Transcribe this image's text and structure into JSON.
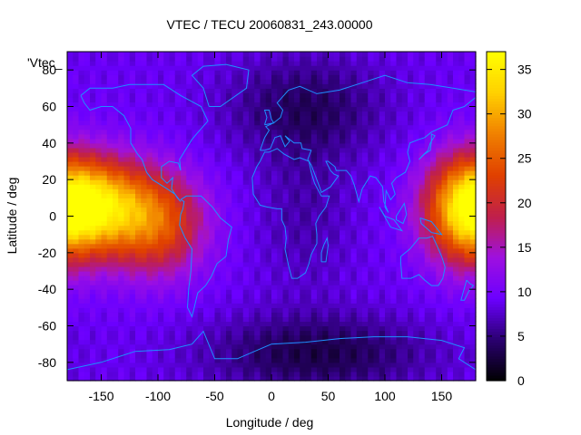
{
  "chart_data": {
    "type": "heatmap",
    "title": "VTEC / TECU 20060831_243.00000",
    "xlabel": "Longitude / deg",
    "ylabel": "Latitude / deg",
    "key_label": "'Vtec_",
    "xlim": [
      -180,
      180
    ],
    "ylim": [
      -90,
      90
    ],
    "x_ticks": [
      -150,
      -100,
      -50,
      0,
      50,
      100,
      150
    ],
    "y_ticks": [
      -80,
      -60,
      -40,
      -20,
      0,
      20,
      40,
      60,
      80
    ],
    "colorbar": {
      "range": [
        0,
        37
      ],
      "ticks": [
        0,
        5,
        10,
        15,
        20,
        25,
        30,
        35
      ],
      "palette": [
        "#000000",
        "#2a0070",
        "#6b00ff",
        "#9e10e0",
        "#c0204a",
        "#e04000",
        "#f08000",
        "#ffd000",
        "#ffff00"
      ]
    },
    "field": {
      "description_units": "TECU",
      "background": 9,
      "blobs": [
        {
          "lon": -160,
          "lat": 6,
          "slon": 35,
          "slat": 18,
          "amp": 24
        },
        {
          "lon": -100,
          "lat": -4,
          "slon": 30,
          "slat": 20,
          "amp": 14
        },
        {
          "lon": 170,
          "lat": 3,
          "slon": 25,
          "slat": 22,
          "amp": 14
        },
        {
          "lon": 30,
          "lat": 60,
          "slon": 50,
          "slat": 20,
          "amp": -5
        },
        {
          "lon": 40,
          "lat": -75,
          "slon": 70,
          "slat": 15,
          "amp": -6
        },
        {
          "lon": 30,
          "lat": 0,
          "slon": 30,
          "slat": 30,
          "amp": -2.5
        }
      ]
    },
    "coastline_color": "#1e90ff",
    "grid": false
  }
}
